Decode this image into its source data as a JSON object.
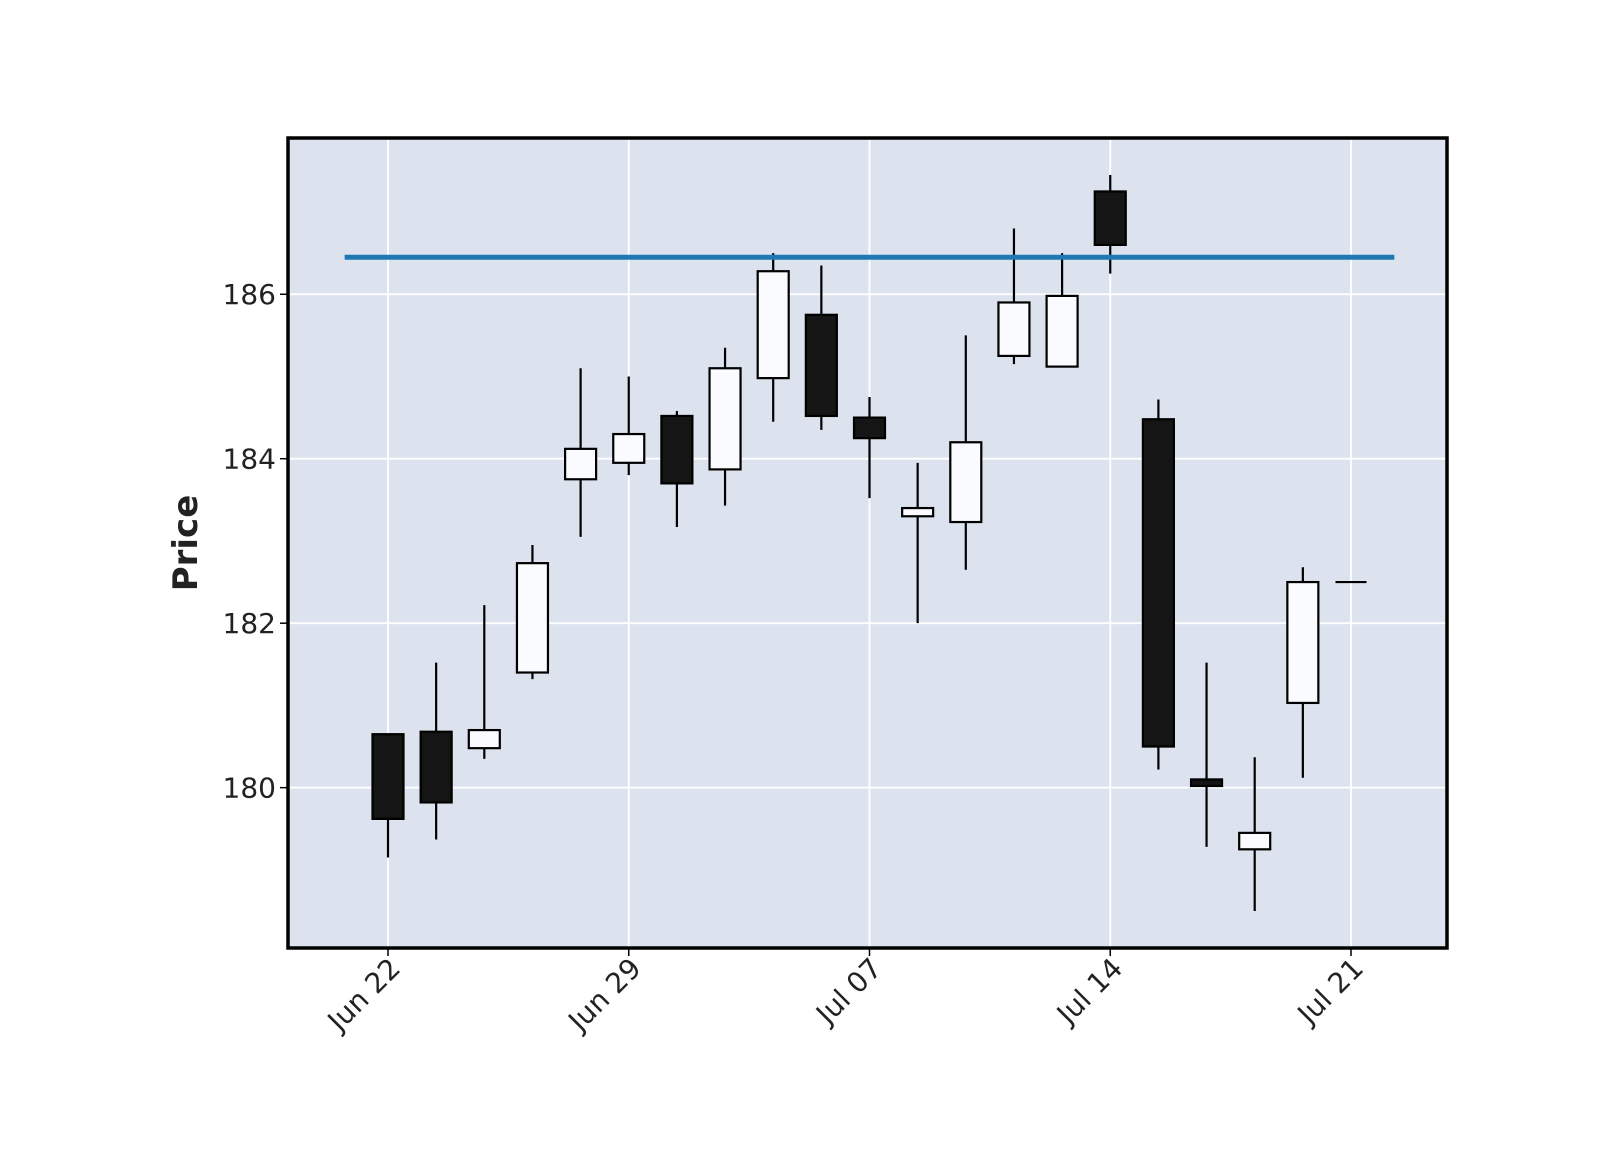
{
  "chart_data": {
    "type": "candlestick",
    "title": "",
    "xlabel": "",
    "ylabel": "Price",
    "ylim": [
      178.05,
      187.9
    ],
    "yticks": [
      180,
      182,
      184,
      186
    ],
    "ytick_labels": [
      "180",
      "182",
      "184",
      "186"
    ],
    "xticks": [
      {
        "label": "Jun 22",
        "index": 0
      },
      {
        "label": "Jun 29",
        "index": 5
      },
      {
        "label": "Jul 07",
        "index": 10
      },
      {
        "label": "Jul 14",
        "index": 15
      },
      {
        "label": "Jul 21",
        "index": 20
      }
    ],
    "grid": true,
    "candles": [
      {
        "open": 180.65,
        "high": 180.65,
        "low": 179.15,
        "close": 179.62
      },
      {
        "open": 180.68,
        "high": 181.52,
        "low": 179.37,
        "close": 179.82
      },
      {
        "open": 180.48,
        "high": 182.22,
        "low": 180.35,
        "close": 180.7
      },
      {
        "open": 181.4,
        "high": 182.95,
        "low": 181.32,
        "close": 182.73
      },
      {
        "open": 183.75,
        "high": 185.1,
        "low": 183.05,
        "close": 184.12
      },
      {
        "open": 183.95,
        "high": 185.0,
        "low": 183.8,
        "close": 184.3
      },
      {
        "open": 184.52,
        "high": 184.58,
        "low": 183.17,
        "close": 183.7
      },
      {
        "open": 183.87,
        "high": 185.35,
        "low": 183.43,
        "close": 185.1
      },
      {
        "open": 184.98,
        "high": 186.5,
        "low": 184.45,
        "close": 186.28
      },
      {
        "open": 185.75,
        "high": 186.35,
        "low": 184.35,
        "close": 184.52
      },
      {
        "open": 184.5,
        "high": 184.75,
        "low": 183.52,
        "close": 184.25
      },
      {
        "open": 183.3,
        "high": 183.95,
        "low": 182.0,
        "close": 183.4
      },
      {
        "open": 183.23,
        "high": 185.5,
        "low": 182.65,
        "close": 184.2
      },
      {
        "open": 185.25,
        "high": 186.8,
        "low": 185.15,
        "close": 185.9
      },
      {
        "open": 185.12,
        "high": 186.5,
        "low": 185.12,
        "close": 185.98
      },
      {
        "open": 187.25,
        "high": 187.45,
        "low": 186.25,
        "close": 186.6
      },
      {
        "open": 184.48,
        "high": 184.72,
        "low": 180.22,
        "close": 180.5
      },
      {
        "open": 180.1,
        "high": 181.52,
        "low": 179.28,
        "close": 180.02
      },
      {
        "open": 179.25,
        "high": 180.37,
        "low": 178.5,
        "close": 179.45
      },
      {
        "open": 181.03,
        "high": 182.68,
        "low": 180.12,
        "close": 182.5
      },
      {
        "open": 182.5,
        "high": 182.5,
        "low": 182.5,
        "close": 182.5
      }
    ],
    "hline": {
      "value": 186.45,
      "color": "#1f77b4",
      "x_from_index": -0.9,
      "x_to_index": 20.9
    },
    "colors": {
      "up_fill": "#fafbff",
      "down_fill": "#151515",
      "edge": "#000000",
      "plot_background": "#dde3ee",
      "grid": "#ffffff",
      "frame": "#000000"
    }
  }
}
